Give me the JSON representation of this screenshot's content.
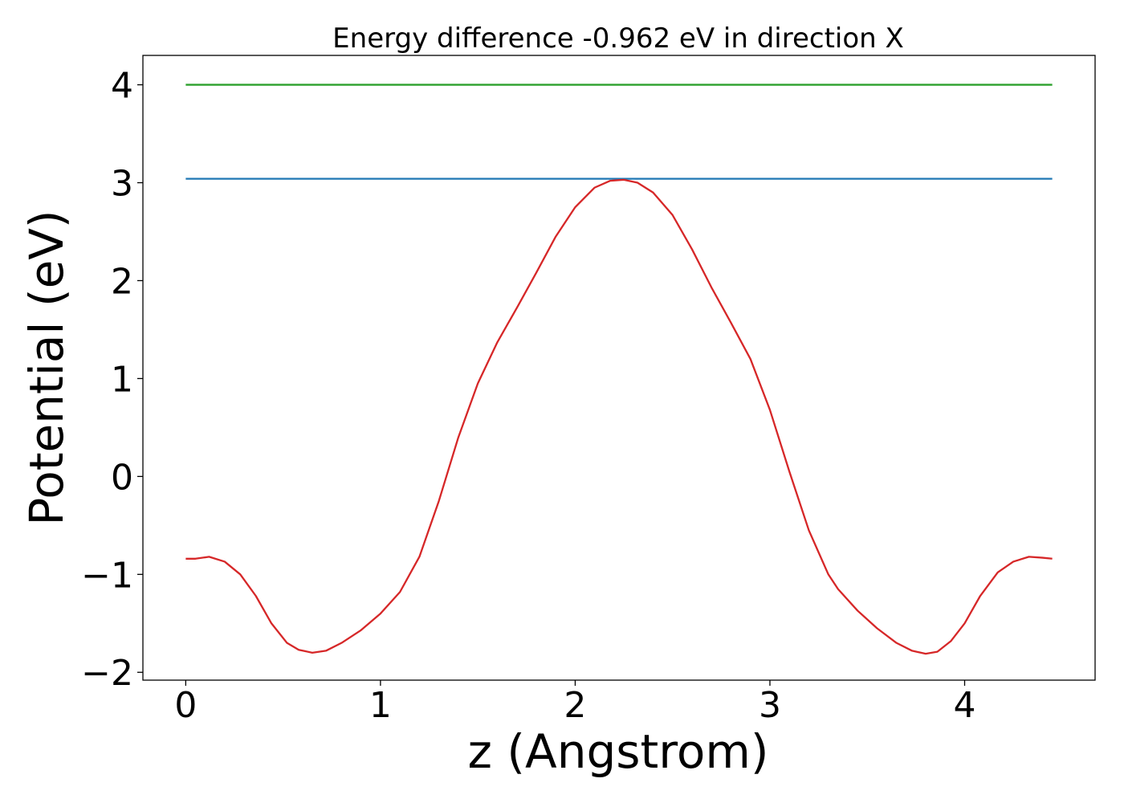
{
  "chart_data": {
    "type": "line",
    "title": "Energy difference -0.962 eV in direction X",
    "xlabel": "z (Angstrom)",
    "ylabel": "Potential (eV)",
    "xlim": [
      -0.22,
      4.67
    ],
    "ylim": [
      -2.08,
      4.3
    ],
    "grid": false,
    "xticks": [
      0,
      1,
      2,
      3,
      4
    ],
    "xtick_labels": [
      "0",
      "1",
      "2",
      "3",
      "4"
    ],
    "yticks": [
      -2,
      -1,
      0,
      1,
      2,
      3,
      4
    ],
    "ytick_labels": [
      "−2",
      "−1",
      "0",
      "1",
      "2",
      "3",
      "4"
    ],
    "series": [
      {
        "color": "#2ca02c",
        "x": [
          0,
          4.45
        ],
        "y": [
          4.0,
          4.0
        ]
      },
      {
        "color": "#1f77b4",
        "x": [
          0,
          4.45
        ],
        "y": [
          3.04,
          3.04
        ]
      },
      {
        "color": "#d62728",
        "x": [
          0,
          0.05,
          0.12,
          0.2,
          0.28,
          0.36,
          0.44,
          0.52,
          0.58,
          0.65,
          0.72,
          0.8,
          0.9,
          1.0,
          1.1,
          1.2,
          1.3,
          1.4,
          1.5,
          1.6,
          1.7,
          1.8,
          1.9,
          2.0,
          2.1,
          2.18,
          2.25,
          2.32,
          2.4,
          2.5,
          2.6,
          2.7,
          2.8,
          2.9,
          3.0,
          3.1,
          3.2,
          3.3,
          3.35,
          3.45,
          3.55,
          3.65,
          3.73,
          3.8,
          3.86,
          3.93,
          4.0,
          4.08,
          4.17,
          4.25,
          4.33,
          4.4,
          4.45
        ],
        "y": [
          -0.84,
          -0.84,
          -0.82,
          -0.87,
          -1.0,
          -1.22,
          -1.5,
          -1.7,
          -1.77,
          -1.8,
          -1.78,
          -1.7,
          -1.57,
          -1.4,
          -1.18,
          -0.82,
          -0.25,
          0.4,
          0.95,
          1.37,
          1.72,
          2.08,
          2.45,
          2.75,
          2.95,
          3.02,
          3.03,
          3.0,
          2.9,
          2.67,
          2.32,
          1.93,
          1.57,
          1.2,
          0.68,
          0.05,
          -0.55,
          -1.0,
          -1.15,
          -1.37,
          -1.55,
          -1.7,
          -1.78,
          -1.81,
          -1.79,
          -1.68,
          -1.5,
          -1.22,
          -0.98,
          -0.87,
          -0.82,
          -0.83,
          -0.84
        ]
      }
    ]
  }
}
